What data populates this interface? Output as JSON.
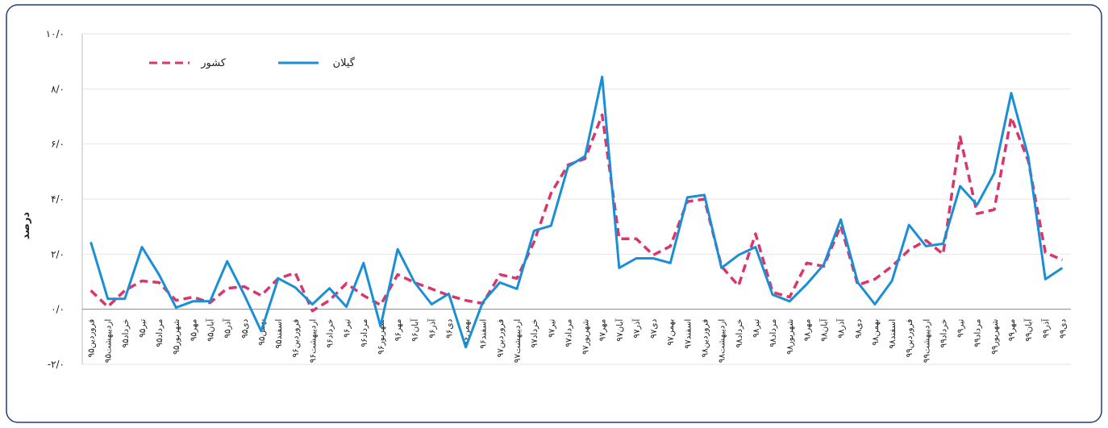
{
  "chart_data": {
    "type": "line",
    "y_label": "درصد",
    "categories": [
      "فروردین۹۵",
      "اردیبهشت۹۵",
      "خرداد۹۵",
      "تیر۹۵",
      "مرداد۹۵",
      "شهریور۹۵",
      "مهر۹۵",
      "آبان۹۵",
      "آذر۹۵",
      "دی۹۵",
      "بهمن۹۵",
      "اسفند۹۵",
      "فروردین۹۶",
      "اردیبهشت۹۶",
      "خرداد۹۶",
      "تیر۹۶",
      "مرداد۹۶",
      "شهریور۹۶",
      "مهر۹۶",
      "آبان۹۶",
      "آذر۹۶",
      "دی۹۶",
      "بهمن۹۶",
      "اسفند۹۶",
      "فروردین۹۷",
      "اردیبهشت۹۷",
      "خرداد۹۷",
      "تیر۹۷",
      "مرداد۹۷",
      "شهریور۹۷",
      "مهر۹۷",
      "آبان۹۷",
      "آذر۹۷",
      "دی۹۷",
      "بهمن۹۷",
      "اسفند۹۷",
      "فروردین۹۸",
      "اردیبهشت۹۸",
      "خرداد۹۸",
      "تیر۹۸",
      "مرداد۹۸",
      "شهریور۹۸",
      "مهر۹۸",
      "آبان۹۸",
      "آذر۹۸",
      "دی۹۸",
      "بهمن۹۸",
      "اسفند۹۸",
      "فروردین۹۹",
      "اردیبهشت۹۹",
      "خرداد۹۹",
      "تیر۹۹",
      "مرداد۹۹",
      "شهریور۹۹",
      "مهر۹۹",
      "آبان۹۹",
      "آذر۹۹",
      "دی۹۹"
    ],
    "series": [
      {
        "name": "گیلان",
        "color": "#1a8fd6",
        "dashed": false,
        "values": [
          2.44,
          0.38,
          0.38,
          2.26,
          1.26,
          0.06,
          0.29,
          0.29,
          1.74,
          0.53,
          -0.79,
          1.12,
          0.79,
          0.18,
          0.76,
          0.09,
          1.68,
          -0.62,
          2.18,
          0.97,
          0.18,
          0.56,
          -1.38,
          0.26,
          0.97,
          0.74,
          2.85,
          3.03,
          5.18,
          5.56,
          8.44,
          1.5,
          1.85,
          1.85,
          1.68,
          4.06,
          4.15,
          1.5,
          1.97,
          2.26,
          0.53,
          0.29,
          0.91,
          1.62,
          3.26,
          0.97,
          0.18,
          1.03,
          3.06,
          2.29,
          2.38,
          4.47,
          3.79,
          4.94,
          7.85,
          5.53,
          1.09,
          1.5
        ]
      },
      {
        "name": "کشور",
        "color": "#d9366b",
        "dashed": true,
        "values": [
          0.68,
          0.09,
          0.68,
          1.03,
          0.97,
          0.32,
          0.44,
          0.24,
          0.76,
          0.82,
          0.5,
          1.12,
          1.32,
          -0.06,
          0.32,
          0.94,
          0.5,
          0.15,
          1.26,
          0.97,
          0.74,
          0.5,
          0.32,
          0.21,
          1.26,
          1.12,
          2.44,
          4.21,
          5.24,
          5.47,
          7.06,
          2.56,
          2.56,
          1.97,
          2.29,
          3.91,
          4.0,
          1.56,
          0.85,
          2.74,
          0.62,
          0.44,
          1.68,
          1.56,
          3.03,
          0.88,
          1.09,
          1.56,
          2.15,
          2.5,
          2.0,
          6.26,
          3.47,
          3.62,
          6.97,
          5.38,
          2.06,
          1.79
        ]
      }
    ],
    "ylim": [
      -2,
      10
    ],
    "yticks": [
      {
        "value": -2,
        "label": "-۲/۰"
      },
      {
        "value": 0,
        "label": "۰/۰"
      },
      {
        "value": 2,
        "label": "۲/۰"
      },
      {
        "value": 4,
        "label": "۴/۰"
      },
      {
        "value": 6,
        "label": "۶/۰"
      },
      {
        "value": 8,
        "label": "۸/۰"
      },
      {
        "value": 10,
        "label": "۱۰/۰"
      }
    ],
    "grid": true
  }
}
